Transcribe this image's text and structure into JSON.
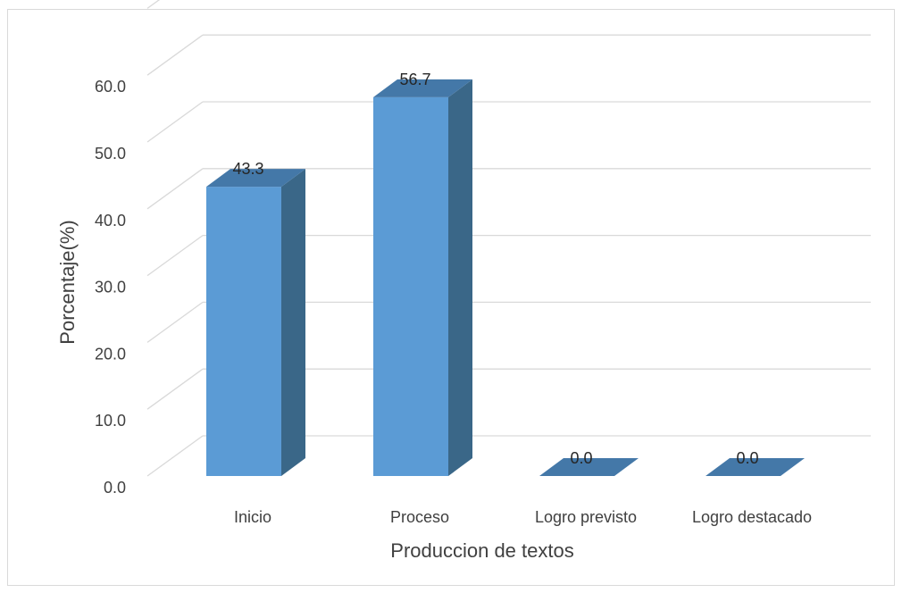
{
  "chart_data": {
    "type": "bar",
    "style": "3d-column",
    "categories": [
      "Inicio",
      "Proceso",
      "Logro previsto",
      "Logro destacado"
    ],
    "values": [
      43.3,
      56.7,
      0.0,
      0.0
    ],
    "data_labels": [
      "43.3",
      "56.7",
      "0.0",
      "0.0"
    ],
    "xlabel": "Produccion de textos",
    "ylabel": "Porcentaje(%)",
    "ylim": [
      0,
      60
    ],
    "yticks": [
      "0.0",
      "10.0",
      "20.0",
      "30.0",
      "40.0",
      "50.0",
      "60.0"
    ],
    "grid": true,
    "legend": "none",
    "colors": {
      "bar_front": "#5b9bd5",
      "bar_side": "#3a6788",
      "bar_top": "#4478a8",
      "gridline": "#d9d9d9"
    }
  }
}
